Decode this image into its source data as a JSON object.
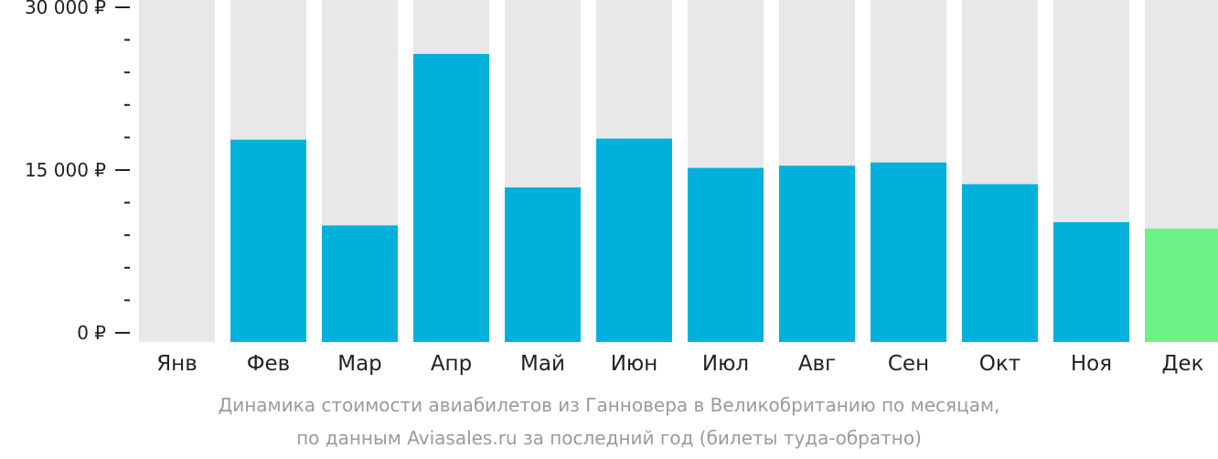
{
  "chart_data": {
    "type": "bar",
    "categories": [
      "Янв",
      "Фев",
      "Мар",
      "Апр",
      "Май",
      "Июн",
      "Июл",
      "Авг",
      "Сен",
      "Окт",
      "Ноя",
      "Дек"
    ],
    "values": [
      0,
      17800,
      9900,
      25700,
      13400,
      17900,
      15200,
      15400,
      15700,
      13700,
      10200,
      9600
    ],
    "ylim": [
      0,
      30000
    ],
    "yticks": [
      {
        "value": 0,
        "label": "0 ₽"
      },
      {
        "value": 15000,
        "label": "15 000 ₽"
      },
      {
        "value": 30000,
        "label": "30 000 ₽"
      }
    ],
    "minor_tick_step": 3000,
    "background_bars": true,
    "highlight_category": "Дек",
    "grid": false,
    "legend": "none"
  },
  "colors": {
    "bar": "#02b0dc",
    "highlight": "#6df187",
    "background_bar": "#e8e8e8",
    "axis": "#222222",
    "caption": "#9a9a9a"
  },
  "caption": {
    "line1": "Динамика стоимости авиабилетов из Ганновера в Великобританию по месяцам,",
    "line2": "по данным Aviasales.ru за последний год (билеты туда-обратно)"
  }
}
